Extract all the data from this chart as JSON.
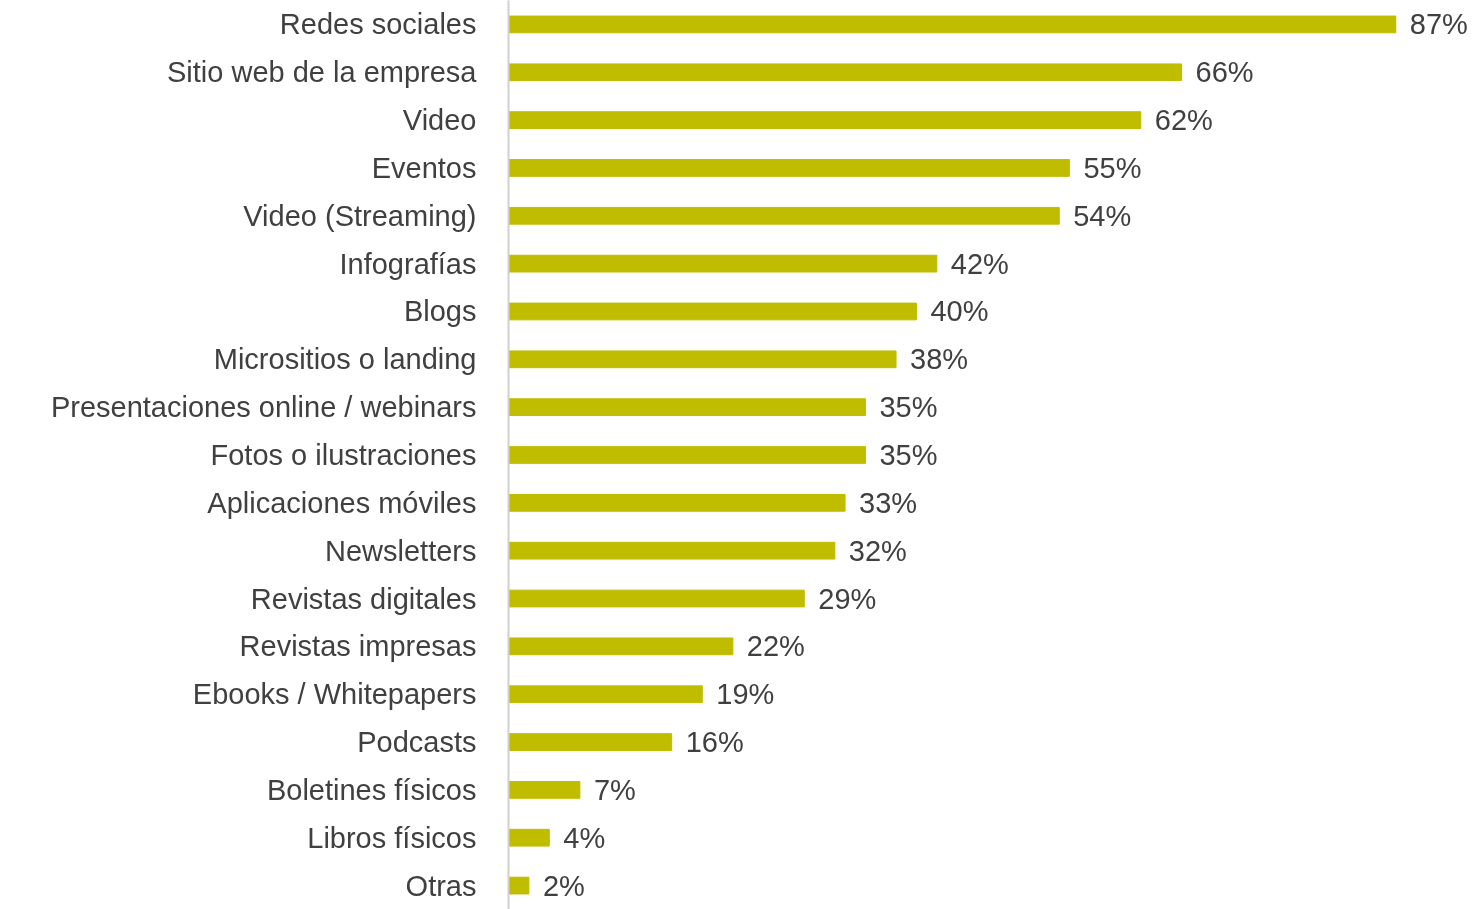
{
  "chart_data": {
    "type": "bar",
    "orientation": "horizontal",
    "categories": [
      "Redes sociales",
      "Sitio web de la empresa",
      "Video",
      "Eventos",
      "Video (Streaming)",
      "Infografías",
      "Blogs",
      "Micrositios o landing",
      "Presentaciones online / webinars",
      "Fotos o ilustraciones",
      "Aplicaciones móviles",
      "Newsletters",
      "Revistas digitales",
      "Revistas impresas",
      "Ebooks / Whitepapers",
      "Podcasts",
      "Boletines físicos",
      "Libros físicos",
      "Otras"
    ],
    "values": [
      87,
      66,
      62,
      55,
      54,
      42,
      40,
      38,
      35,
      35,
      33,
      32,
      29,
      22,
      19,
      16,
      7,
      4,
      2
    ],
    "value_labels": [
      "87%",
      "66%",
      "62%",
      "55%",
      "54%",
      "42%",
      "40%",
      "38%",
      "35%",
      "35%",
      "33%",
      "32%",
      "29%",
      "22%",
      "19%",
      "16%",
      "7%",
      "4%",
      "2%"
    ],
    "color": "#c0bc00",
    "grid": false
  }
}
